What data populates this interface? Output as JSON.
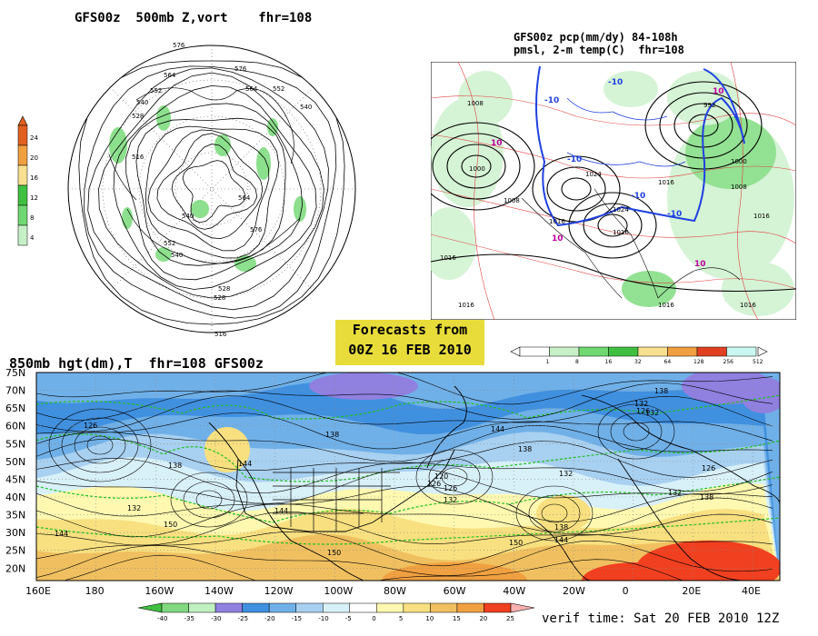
{
  "panels": {
    "polar": {
      "title": "GFS00z  500mb Z,vort    fhr=108",
      "colorbar_labels": [
        "24",
        "20",
        "16",
        "12",
        "8",
        "4"
      ],
      "contour_labels": [
        "576",
        "564",
        "552",
        "540",
        "528",
        "516",
        "576",
        "564",
        "552",
        "540",
        "528",
        "516",
        "552",
        "540",
        "564",
        "576",
        "528",
        "540"
      ]
    },
    "precip": {
      "title_line1": "GFS00z pcp(mm/dy) 84-108h",
      "title_line2": "pmsl, 2-m temp(C)  fhr=108",
      "colorbar_labels": [
        "1",
        "8",
        "16",
        "32",
        "64",
        "128",
        "256",
        "512"
      ],
      "isobar_labels": [
        "1008",
        "1000",
        "1008",
        "1016",
        "1024",
        "1016",
        "1016",
        "1024",
        "992",
        "1000",
        "1008",
        "1016",
        "1016",
        "1016",
        "1016",
        "1016"
      ],
      "temp_labels": [
        "10",
        "-10",
        "-10",
        "-10",
        "-10",
        "10",
        "10",
        "10",
        "-10"
      ]
    },
    "h850": {
      "title": "850mb hgt(dm),T  fhr=108 GFS00z",
      "lat_labels": [
        "75N",
        "70N",
        "65N",
        "60N",
        "55N",
        "50N",
        "45N",
        "40N",
        "35N",
        "30N",
        "25N",
        "20N"
      ],
      "lon_labels": [
        "160E",
        "180",
        "160W",
        "140W",
        "120W",
        "100W",
        "80W",
        "60W",
        "40W",
        "20W",
        "0",
        "20E",
        "40E"
      ],
      "contour_labels": [
        "126",
        "138",
        "144",
        "138",
        "144",
        "138",
        "132",
        "126",
        "120",
        "126",
        "132",
        "144",
        "132",
        "132",
        "138",
        "132",
        "126",
        "138",
        "126",
        "132",
        "144",
        "150",
        "150",
        "150",
        "144",
        "138"
      ],
      "colorbar_labels": [
        "-40",
        "-35",
        "-30",
        "-25",
        "-20",
        "-15",
        "-10",
        "-5",
        "0",
        "5",
        "10",
        "15",
        "20",
        "25"
      ]
    }
  },
  "forecast_box": {
    "line1": "Forecasts from",
    "line2": "00Z 16 FEB 2010"
  },
  "verif": "verif time: Sat 20 FEB 2010 12Z",
  "colors": {
    "forecast_box_bg": "#e8dc3a",
    "polar_scale": [
      "#e06020",
      "#f0a040",
      "#f8e090",
      "#40c040",
      "#70d870",
      "#c8f0c8"
    ],
    "precip_scale": [
      "#ffffff",
      "#c8f0c8",
      "#70d870",
      "#40c040",
      "#f8e090",
      "#f0a040",
      "#e04020",
      "#c8f8f0"
    ],
    "temp_scale": [
      "#40c040",
      "#80d880",
      "#c0f0c0",
      "#9080e0",
      "#4090e0",
      "#70b0e8",
      "#a8d0f0",
      "#d8f0f8",
      "#ffffff",
      "#fff8b0",
      "#f8e080",
      "#f0c060",
      "#f0a040",
      "#f04020",
      "#f8b0b0"
    ]
  }
}
